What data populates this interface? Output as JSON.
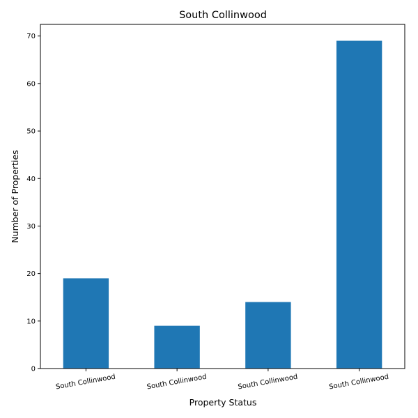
{
  "chart_data": {
    "type": "bar",
    "title": "South Collinwood",
    "xlabel": "Property Status",
    "ylabel": "Number of Properties",
    "categories": [
      "South Collinwood",
      "South Collinwood",
      "South Collinwood",
      "South Collinwood"
    ],
    "values": [
      19,
      9,
      14,
      69
    ],
    "ylim": [
      0,
      72.45
    ],
    "yticks": [
      0,
      10,
      20,
      30,
      40,
      50,
      60,
      70
    ],
    "bar_color": "#1f77b4",
    "grid": false,
    "legend": "none"
  }
}
